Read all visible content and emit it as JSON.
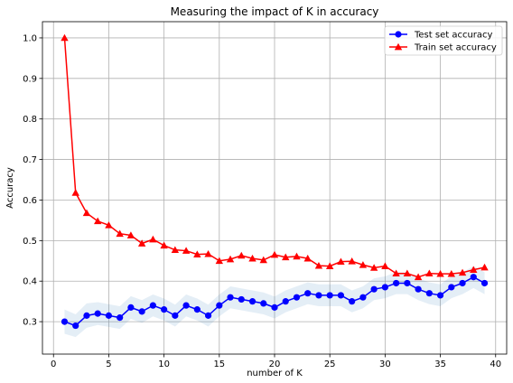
{
  "chart_data": {
    "type": "line",
    "title": "Measuring the impact of K in accuracy",
    "xlabel": "number of K",
    "ylabel": "Accuracy",
    "xlim": [
      -1,
      41
    ],
    "ylim": [
      0.22,
      1.04
    ],
    "xticks": [
      0,
      5,
      10,
      15,
      20,
      25,
      30,
      35,
      40
    ],
    "xtick_labels": [
      "0",
      "5",
      "10",
      "15",
      "20",
      "25",
      "30",
      "35",
      "40"
    ],
    "yticks": [
      0.3,
      0.4,
      0.5,
      0.6,
      0.7,
      0.8,
      0.9,
      1.0
    ],
    "ytick_labels": [
      "0.3",
      "0.4",
      "0.5",
      "0.6",
      "0.7",
      "0.8",
      "0.9",
      "1.0"
    ],
    "grid": true,
    "legend_position": "top-right",
    "x": [
      1,
      2,
      3,
      4,
      5,
      6,
      7,
      8,
      9,
      10,
      11,
      12,
      13,
      14,
      15,
      16,
      17,
      18,
      19,
      20,
      21,
      22,
      23,
      24,
      25,
      26,
      27,
      28,
      29,
      30,
      31,
      32,
      33,
      34,
      35,
      36,
      37,
      38,
      39
    ],
    "series": [
      {
        "name": "Test set accuracy",
        "color": "#0000ff",
        "marker": "circle",
        "values": [
          0.3,
          0.29,
          0.315,
          0.32,
          0.315,
          0.31,
          0.335,
          0.325,
          0.34,
          0.33,
          0.315,
          0.34,
          0.33,
          0.315,
          0.34,
          0.36,
          0.355,
          0.35,
          0.345,
          0.335,
          0.35,
          0.36,
          0.37,
          0.365,
          0.365,
          0.365,
          0.35,
          0.36,
          0.38,
          0.385,
          0.395,
          0.395,
          0.38,
          0.37,
          0.365,
          0.385,
          0.395,
          0.41,
          0.395
        ],
        "band": {
          "color": "#1f77b4",
          "opacity": 0.12,
          "halfwidth": [
            0.03,
            0.028,
            0.03,
            0.028,
            0.028,
            0.028,
            0.028,
            0.028,
            0.027,
            0.027,
            0.027,
            0.027,
            0.027,
            0.027,
            0.027,
            0.027,
            0.027,
            0.027,
            0.027,
            0.027,
            0.027,
            0.027,
            0.027,
            0.027,
            0.027,
            0.027,
            0.027,
            0.027,
            0.027,
            0.027,
            0.027,
            0.027,
            0.027,
            0.027,
            0.027,
            0.027,
            0.027,
            0.027,
            0.027
          ]
        }
      },
      {
        "name": "Train set accuracy",
        "color": "#ff0000",
        "marker": "triangle",
        "values": [
          1.0,
          0.618,
          0.568,
          0.548,
          0.538,
          0.517,
          0.513,
          0.493,
          0.503,
          0.488,
          0.477,
          0.475,
          0.466,
          0.467,
          0.45,
          0.454,
          0.463,
          0.456,
          0.452,
          0.465,
          0.459,
          0.461,
          0.456,
          0.438,
          0.437,
          0.448,
          0.449,
          0.44,
          0.433,
          0.437,
          0.419,
          0.419,
          0.41,
          0.419,
          0.418,
          0.418,
          0.421,
          0.428,
          0.434
        ]
      }
    ]
  }
}
